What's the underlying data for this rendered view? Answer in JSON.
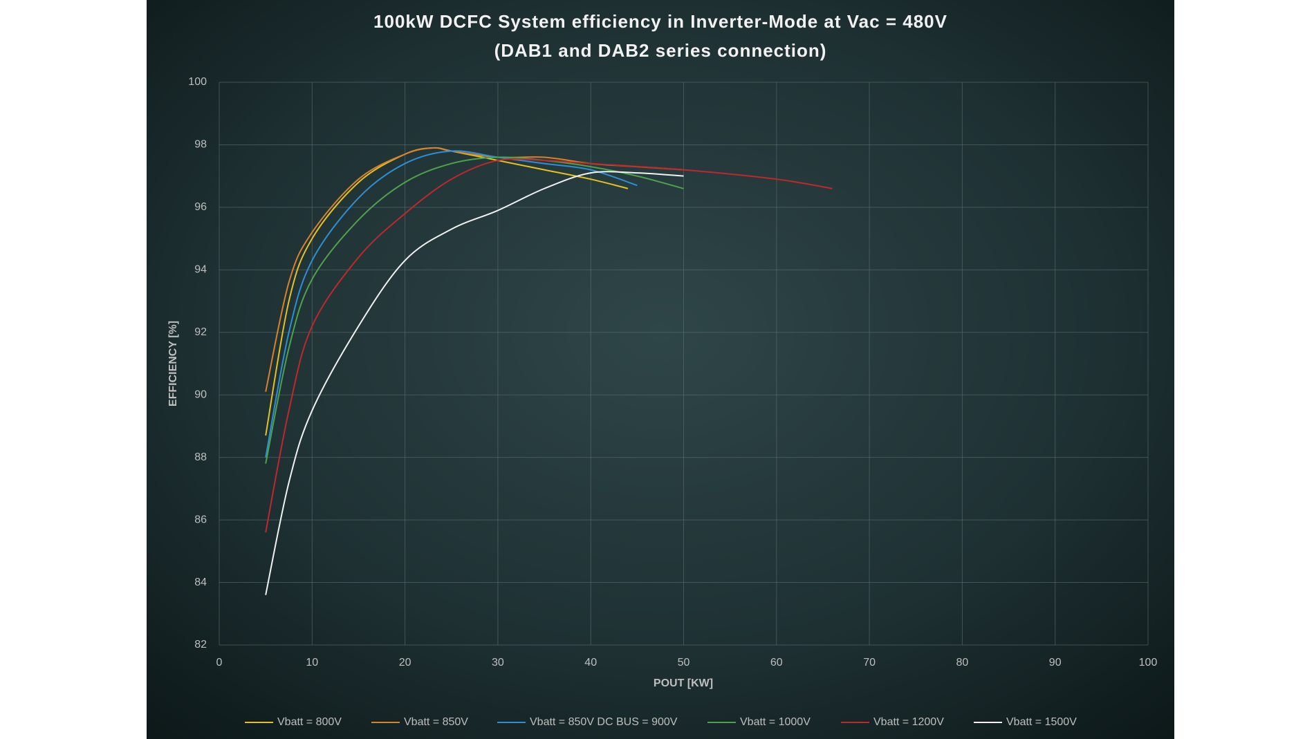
{
  "chart_data": {
    "type": "line",
    "title": "100kW DCFC System efficiency in Inverter-Mode at Vac = 480V",
    "subtitle": "(DAB1 and DAB2 series connection)",
    "x_label": "POUT [KW]",
    "y_label": "EFFICIENCY [%]",
    "xlim": [
      0,
      100
    ],
    "xticks": [
      0,
      10,
      20,
      30,
      40,
      50,
      60,
      70,
      80,
      90,
      100
    ],
    "ylim": [
      82,
      100
    ],
    "yticks": [
      82,
      84,
      86,
      88,
      90,
      92,
      94,
      96,
      98,
      100
    ],
    "grid": true,
    "legend": "bottom",
    "series": [
      {
        "name": "Vbatt = 800V",
        "color": "#e5c21e",
        "x": [
          5,
          7.5,
          10,
          15,
          20,
          23,
          25,
          30,
          35,
          40,
          44
        ],
        "values": [
          88.7,
          93.0,
          95.0,
          96.8,
          97.7,
          97.9,
          97.8,
          97.5,
          97.2,
          96.9,
          96.6
        ]
      },
      {
        "name": "Vbatt = 850V",
        "color": "#d9822b",
        "x": [
          5,
          7.5,
          10,
          15,
          20,
          23,
          25,
          30,
          35,
          40,
          45,
          50
        ],
        "values": [
          90.1,
          93.6,
          95.2,
          96.9,
          97.7,
          97.9,
          97.8,
          97.6,
          97.6,
          97.4,
          97.3,
          97.2
        ]
      },
      {
        "name": "Vbatt = 850V DC BUS = 900V",
        "color": "#2e8fd4",
        "x": [
          5,
          7.5,
          10,
          15,
          20,
          25,
          30,
          35,
          40,
          45
        ],
        "values": [
          88.0,
          92.0,
          94.3,
          96.3,
          97.4,
          97.8,
          97.6,
          97.4,
          97.2,
          96.7
        ]
      },
      {
        "name": "Vbatt = 1000V",
        "color": "#4ea24b",
        "x": [
          5,
          7.5,
          10,
          15,
          20,
          25,
          30,
          35,
          40,
          45,
          50
        ],
        "values": [
          87.8,
          91.5,
          93.7,
          95.6,
          96.8,
          97.4,
          97.6,
          97.5,
          97.3,
          97.0,
          96.6
        ]
      },
      {
        "name": "Vbatt = 1200V",
        "color": "#c0282b",
        "x": [
          5,
          7.5,
          10,
          15,
          20,
          25,
          30,
          35,
          40,
          50,
          60,
          66
        ],
        "values": [
          85.6,
          89.5,
          92.2,
          94.4,
          95.8,
          96.9,
          97.5,
          97.5,
          97.4,
          97.2,
          96.9,
          96.6
        ]
      },
      {
        "name": "Vbatt = 1500V",
        "color": "#f2f2f2",
        "x": [
          5,
          7.5,
          10,
          15,
          20,
          25,
          30,
          35,
          40,
          45,
          50
        ],
        "values": [
          83.6,
          87.2,
          89.5,
          92.2,
          94.3,
          95.3,
          95.9,
          96.6,
          97.1,
          97.1,
          97.0
        ]
      }
    ]
  }
}
